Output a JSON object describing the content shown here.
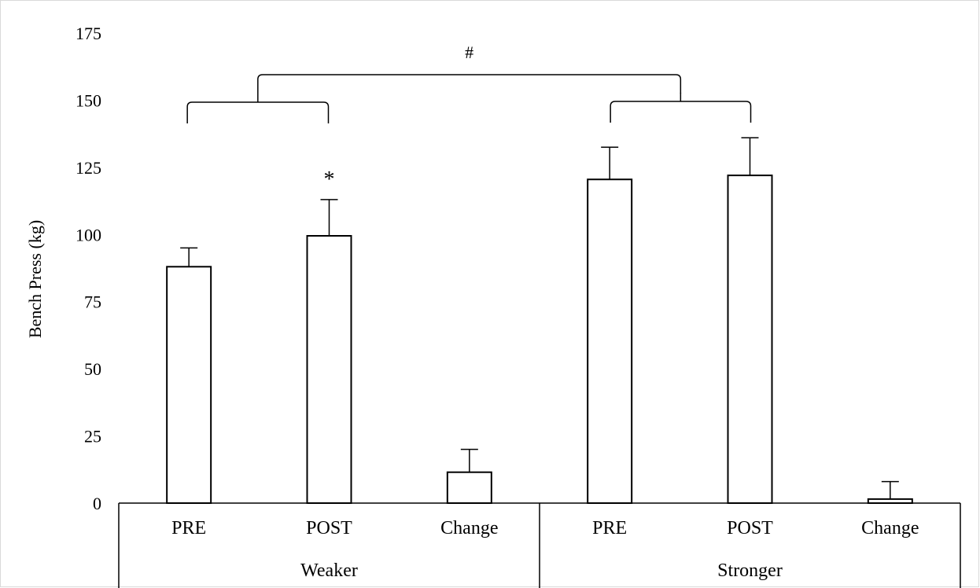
{
  "chart_data": {
    "type": "bar",
    "title": "",
    "ylabel": "Bench Press (kg)",
    "xlabel": "",
    "ylim": [
      0,
      175
    ],
    "yticks": [
      0,
      25,
      50,
      75,
      100,
      125,
      150,
      175
    ],
    "grid": false,
    "legend": "none",
    "groups": [
      {
        "name": "Weaker",
        "categories": [
          "PRE",
          "POST",
          "Change"
        ],
        "values": [
          88,
          99.5,
          11.5
        ],
        "errors": [
          7,
          13.5,
          8.5
        ]
      },
      {
        "name": "Stronger",
        "categories": [
          "PRE",
          "POST",
          "Change"
        ],
        "values": [
          120.5,
          122,
          1.5
        ],
        "errors": [
          12,
          14,
          6.5
        ]
      }
    ],
    "annotations": [
      {
        "text": "*",
        "target": "Weaker POST"
      },
      {
        "text": "#",
        "target": "Weaker vs Stronger"
      }
    ],
    "colors": {
      "bar_fill": "#ffffff",
      "bar_stroke": "#000000"
    }
  }
}
